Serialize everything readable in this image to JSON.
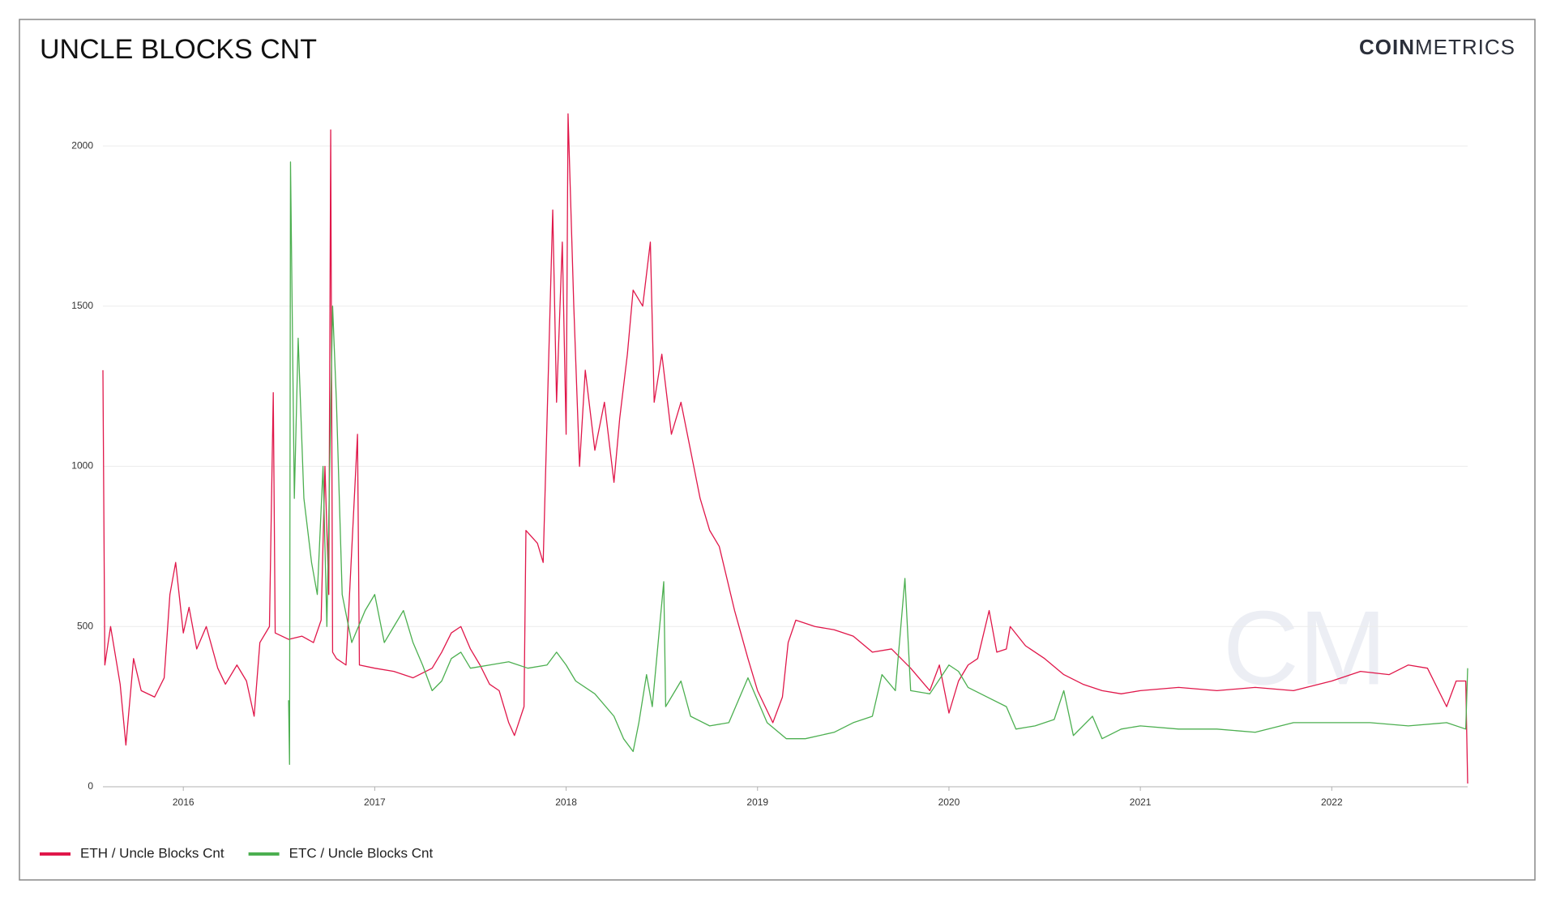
{
  "chart_data": {
    "type": "line",
    "title": "UNCLE BLOCKS CNT",
    "logo_bold": "COIN",
    "logo_light": "METRICS",
    "watermark": "CM",
    "xlim": [
      2015.58,
      2022.71
    ],
    "xticks": [
      2016,
      2017,
      2018,
      2019,
      2020,
      2021,
      2022
    ],
    "ylim": [
      0,
      2200
    ],
    "yticks": [
      0,
      500,
      1000,
      1500,
      2000
    ],
    "grid": true,
    "legend": "bottom-left",
    "series": [
      {
        "name": "ETH / Uncle Blocks Cnt",
        "color": "#e0174a",
        "x": [
          2015.58,
          2015.59,
          2015.62,
          2015.67,
          2015.7,
          2015.74,
          2015.78,
          2015.85,
          2015.9,
          2015.93,
          2015.96,
          2016.0,
          2016.03,
          2016.07,
          2016.12,
          2016.18,
          2016.22,
          2016.28,
          2016.33,
          2016.37,
          2016.4,
          2016.45,
          2016.47,
          2016.48,
          2016.55,
          2016.62,
          2016.68,
          2016.72,
          2016.74,
          2016.76,
          2016.77,
          2016.78,
          2016.8,
          2016.85,
          2016.91,
          2016.92,
          2017.0,
          2017.1,
          2017.2,
          2017.3,
          2017.35,
          2017.4,
          2017.45,
          2017.5,
          2017.55,
          2017.6,
          2017.65,
          2017.7,
          2017.73,
          2017.78,
          2017.79,
          2017.85,
          2017.88,
          2017.93,
          2017.95,
          2017.98,
          2018.0,
          2018.01,
          2018.04,
          2018.07,
          2018.1,
          2018.15,
          2018.2,
          2018.25,
          2018.28,
          2018.32,
          2018.35,
          2018.4,
          2018.44,
          2018.46,
          2018.5,
          2018.55,
          2018.6,
          2018.65,
          2018.7,
          2018.75,
          2018.8,
          2018.88,
          2018.95,
          2019.0,
          2019.08,
          2019.13,
          2019.16,
          2019.2,
          2019.3,
          2019.4,
          2019.5,
          2019.6,
          2019.7,
          2019.8,
          2019.9,
          2019.95,
          2020.0,
          2020.05,
          2020.1,
          2020.15,
          2020.21,
          2020.25,
          2020.3,
          2020.32,
          2020.4,
          2020.5,
          2020.6,
          2020.7,
          2020.8,
          2020.9,
          2021.0,
          2021.2,
          2021.4,
          2021.6,
          2021.8,
          2022.0,
          2022.15,
          2022.3,
          2022.4,
          2022.5,
          2022.6,
          2022.65,
          2022.7,
          2022.71
        ],
        "values": [
          1300,
          380,
          500,
          320,
          130,
          400,
          300,
          280,
          340,
          600,
          700,
          480,
          560,
          430,
          500,
          370,
          320,
          380,
          330,
          220,
          450,
          500,
          1230,
          480,
          460,
          470,
          450,
          520,
          1000,
          600,
          2050,
          420,
          400,
          380,
          1100,
          380,
          370,
          360,
          340,
          370,
          420,
          480,
          500,
          430,
          380,
          320,
          300,
          200,
          160,
          250,
          800,
          760,
          700,
          1800,
          1200,
          1700,
          1100,
          2100,
          1500,
          1000,
          1300,
          1050,
          1200,
          950,
          1150,
          1350,
          1550,
          1500,
          1700,
          1200,
          1350,
          1100,
          1200,
          1050,
          900,
          800,
          750,
          550,
          400,
          300,
          200,
          280,
          450,
          520,
          500,
          490,
          470,
          420,
          430,
          370,
          300,
          380,
          230,
          330,
          380,
          400,
          550,
          420,
          430,
          500,
          440,
          400,
          350,
          320,
          300,
          290,
          300,
          310,
          300,
          310,
          300,
          330,
          360,
          350,
          380,
          370,
          250,
          330,
          330,
          10
        ]
      },
      {
        "name": "ETC / Uncle Blocks Cnt",
        "color": "#4caf50",
        "x": [
          2016.55,
          2016.555,
          2016.56,
          2016.58,
          2016.6,
          2016.63,
          2016.67,
          2016.7,
          2016.73,
          2016.75,
          2016.78,
          2016.8,
          2016.83,
          2016.88,
          2016.95,
          2017.0,
          2017.05,
          2017.1,
          2017.15,
          2017.2,
          2017.25,
          2017.3,
          2017.35,
          2017.4,
          2017.45,
          2017.5,
          2017.6,
          2017.7,
          2017.8,
          2017.9,
          2017.95,
          2018.0,
          2018.05,
          2018.15,
          2018.25,
          2018.3,
          2018.35,
          2018.38,
          2018.42,
          2018.45,
          2018.51,
          2018.52,
          2018.6,
          2018.65,
          2018.75,
          2018.85,
          2018.95,
          2019.05,
          2019.15,
          2019.25,
          2019.4,
          2019.5,
          2019.6,
          2019.65,
          2019.72,
          2019.77,
          2019.8,
          2019.9,
          2020.0,
          2020.05,
          2020.1,
          2020.2,
          2020.3,
          2020.35,
          2020.45,
          2020.55,
          2020.6,
          2020.65,
          2020.75,
          2020.8,
          2020.9,
          2021.0,
          2021.2,
          2021.4,
          2021.6,
          2021.8,
          2022.0,
          2022.2,
          2022.4,
          2022.6,
          2022.7,
          2022.71
        ],
        "values": [
          270,
          70,
          1950,
          900,
          1400,
          900,
          700,
          600,
          1000,
          500,
          1500,
          1200,
          600,
          450,
          550,
          600,
          450,
          500,
          550,
          450,
          380,
          300,
          330,
          400,
          420,
          370,
          380,
          390,
          370,
          380,
          420,
          380,
          330,
          290,
          220,
          150,
          110,
          200,
          350,
          250,
          640,
          250,
          330,
          220,
          190,
          200,
          340,
          200,
          150,
          150,
          170,
          200,
          220,
          350,
          300,
          650,
          300,
          290,
          380,
          360,
          310,
          280,
          250,
          180,
          190,
          210,
          300,
          160,
          220,
          150,
          180,
          190,
          180,
          180,
          170,
          200,
          200,
          200,
          190,
          200,
          180,
          370
        ]
      }
    ]
  }
}
